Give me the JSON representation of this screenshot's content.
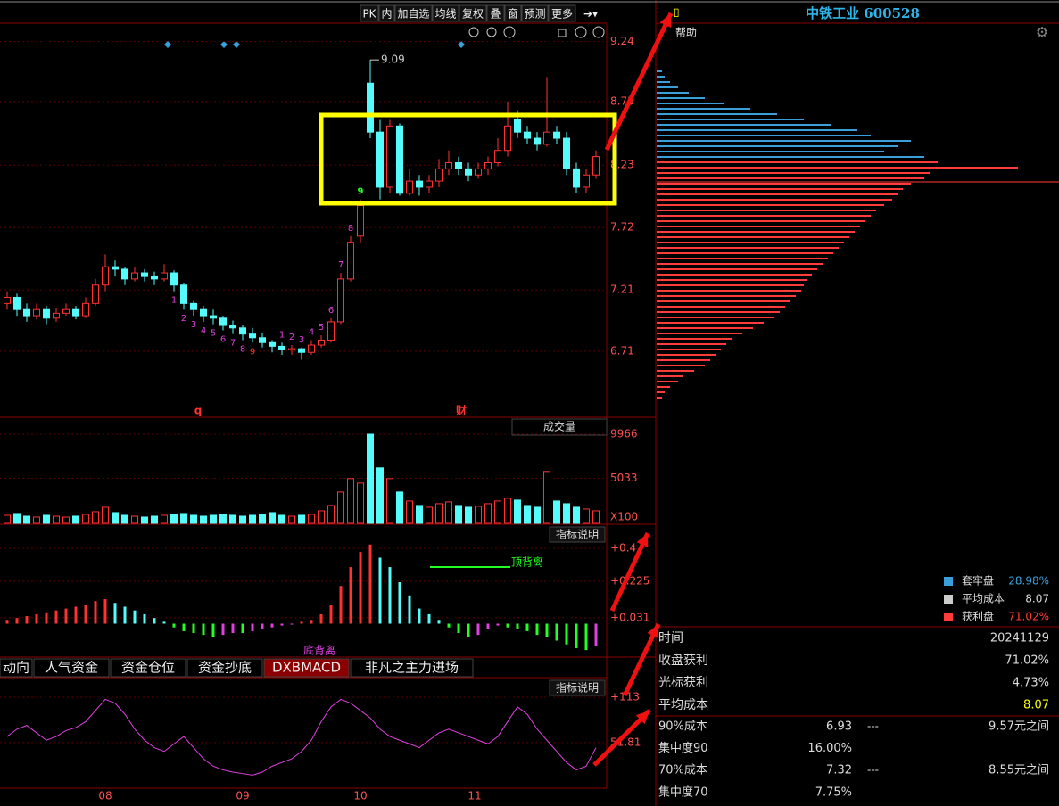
{
  "toolbar": {
    "buttons": [
      "PK",
      "内",
      "加自选",
      "均线",
      "复权",
      "叠",
      "窗",
      "预测",
      "更多"
    ]
  },
  "stock_title": "中铁工业 600528",
  "help": "帮助",
  "price_panel": {
    "ylim": [
      6.17,
      9.39
    ],
    "yticks": [
      9.24,
      8.75,
      8.23,
      7.72,
      7.21,
      6.71
    ],
    "candles": [
      [
        7.1,
        7.2,
        7.05,
        7.15
      ],
      [
        7.15,
        7.18,
        7.0,
        7.05
      ],
      [
        7.05,
        7.1,
        6.95,
        7.0
      ],
      [
        7.0,
        7.1,
        6.97,
        7.05
      ],
      [
        7.05,
        7.08,
        6.93,
        6.98
      ],
      [
        6.98,
        7.06,
        6.95,
        7.02
      ],
      [
        7.02,
        7.1,
        7.0,
        7.05
      ],
      [
        7.05,
        7.08,
        6.97,
        7.0
      ],
      [
        7.0,
        7.15,
        6.98,
        7.1
      ],
      [
        7.1,
        7.3,
        7.08,
        7.25
      ],
      [
        7.25,
        7.5,
        7.2,
        7.4
      ],
      [
        7.4,
        7.45,
        7.32,
        7.38
      ],
      [
        7.38,
        7.4,
        7.25,
        7.3
      ],
      [
        7.3,
        7.4,
        7.28,
        7.35
      ],
      [
        7.35,
        7.38,
        7.28,
        7.32
      ],
      [
        7.32,
        7.36,
        7.25,
        7.3
      ],
      [
        7.3,
        7.42,
        7.28,
        7.35
      ],
      [
        7.35,
        7.37,
        7.2,
        7.25
      ],
      [
        7.25,
        7.27,
        7.05,
        7.1
      ],
      [
        7.1,
        7.12,
        7.0,
        7.05
      ],
      [
        7.05,
        7.08,
        6.95,
        7.0
      ],
      [
        7.0,
        7.05,
        6.93,
        6.98
      ],
      [
        6.98,
        7.0,
        6.88,
        6.92
      ],
      [
        6.92,
        6.96,
        6.85,
        6.9
      ],
      [
        6.9,
        6.92,
        6.8,
        6.85
      ],
      [
        6.85,
        6.9,
        6.78,
        6.82
      ],
      [
        6.82,
        6.86,
        6.74,
        6.78
      ],
      [
        6.78,
        6.8,
        6.7,
        6.75
      ],
      [
        6.75,
        6.78,
        6.68,
        6.72
      ],
      [
        6.72,
        6.76,
        6.68,
        6.73
      ],
      [
        6.73,
        6.74,
        6.64,
        6.7
      ],
      [
        6.7,
        6.8,
        6.68,
        6.76
      ],
      [
        6.76,
        6.84,
        6.74,
        6.8
      ],
      [
        6.8,
        6.98,
        6.78,
        6.95
      ],
      [
        6.95,
        7.35,
        6.93,
        7.3
      ],
      [
        7.3,
        7.65,
        7.28,
        7.6
      ],
      [
        7.65,
        7.95,
        7.6,
        7.9
      ],
      [
        8.9,
        9.09,
        8.45,
        8.5
      ],
      [
        8.5,
        8.6,
        7.95,
        8.05
      ],
      [
        8.05,
        8.6,
        8.0,
        8.55
      ],
      [
        8.55,
        8.57,
        7.98,
        8.0
      ],
      [
        8.0,
        8.2,
        7.98,
        8.1
      ],
      [
        8.1,
        8.15,
        7.98,
        8.05
      ],
      [
        8.05,
        8.15,
        8.0,
        8.1
      ],
      [
        8.1,
        8.28,
        8.05,
        8.2
      ],
      [
        8.2,
        8.35,
        8.15,
        8.25
      ],
      [
        8.25,
        8.3,
        8.15,
        8.2
      ],
      [
        8.2,
        8.25,
        8.1,
        8.15
      ],
      [
        8.15,
        8.25,
        8.12,
        8.2
      ],
      [
        8.2,
        8.3,
        8.15,
        8.25
      ],
      [
        8.25,
        8.45,
        8.22,
        8.35
      ],
      [
        8.35,
        8.75,
        8.3,
        8.55
      ],
      [
        8.6,
        8.68,
        8.45,
        8.5
      ],
      [
        8.5,
        8.55,
        8.4,
        8.45
      ],
      [
        8.45,
        8.5,
        8.35,
        8.4
      ],
      [
        8.4,
        8.95,
        8.38,
        8.5
      ],
      [
        8.5,
        8.55,
        8.4,
        8.45
      ],
      [
        8.45,
        8.5,
        8.15,
        8.2
      ],
      [
        8.2,
        8.25,
        8.0,
        8.05
      ],
      [
        8.05,
        8.2,
        8.0,
        8.15
      ],
      [
        8.15,
        8.35,
        8.12,
        8.3
      ]
    ],
    "high_label": 9.09,
    "td_down": [
      "1",
      "2",
      "3",
      "4",
      "5",
      "6",
      "7",
      "8",
      "9"
    ],
    "td_up": [
      "1",
      "2",
      "3",
      "4",
      "5",
      "6",
      "7",
      "8",
      "9"
    ],
    "event_markers": [
      "q",
      "财"
    ]
  },
  "volume_panel": {
    "title": "成交量",
    "ylim": [
      0,
      11660
    ],
    "yticks": [
      9966,
      5033
    ],
    "unit_label": "X100",
    "values": [
      900,
      1100,
      800,
      700,
      900,
      800,
      700,
      800,
      1000,
      1300,
      1800,
      1200,
      900,
      800,
      700,
      800,
      900,
      1000,
      1100,
      900,
      800,
      900,
      1000,
      900,
      800,
      900,
      1000,
      1200,
      900,
      800,
      900,
      1000,
      1400,
      2000,
      3500,
      5000,
      4500,
      9966,
      6200,
      5000,
      3500,
      2500,
      2000,
      1800,
      2200,
      2400,
      2000,
      1800,
      1900,
      2200,
      2500,
      2800,
      2600,
      2000,
      1800,
      5800,
      2500,
      2200,
      1800,
      1600,
      1400
    ]
  },
  "macd_panel": {
    "button": "指标说明",
    "ylim": [
      -0.168,
      0.518
    ],
    "yticks": [
      {
        "value": 0.4,
        "label": "+0.4"
      },
      {
        "value": 0.225,
        "label": "+0.225"
      },
      {
        "value": 0.031,
        "label": "+0.031"
      }
    ],
    "values": [
      0.02,
      0.03,
      0.04,
      0.05,
      0.06,
      0.07,
      0.08,
      0.09,
      0.1,
      0.12,
      0.13,
      0.11,
      0.09,
      0.07,
      0.05,
      0.03,
      0.01,
      -0.02,
      -0.04,
      -0.05,
      -0.06,
      -0.07,
      -0.06,
      -0.05,
      -0.05,
      -0.04,
      -0.03,
      -0.02,
      -0.01,
      -0.005,
      0.01,
      0.02,
      0.05,
      0.1,
      0.2,
      0.3,
      0.38,
      0.42,
      0.35,
      0.3,
      0.22,
      0.15,
      0.08,
      0.05,
      0.02,
      -0.02,
      -0.05,
      -0.07,
      -0.06,
      -0.03,
      -0.01,
      -0.02,
      -0.03,
      -0.04,
      -0.06,
      -0.07,
      -0.09,
      -0.11,
      -0.13,
      -0.14,
      -0.12
    ],
    "top_divergence": "顶背离",
    "bottom_divergence": "底背离"
  },
  "tabs": [
    "动向",
    "人气资金",
    "资金仓位",
    "资金抄底",
    "DXBMACD",
    "非凡之主力进场"
  ],
  "kdj_panel": {
    "button": "指标说明",
    "ylim": [
      -9.6,
      137
    ],
    "yticks": [
      {
        "value": 113,
        "label": "+113"
      },
      51.81
    ],
    "values": [
      60,
      70,
      75,
      65,
      55,
      60,
      68,
      72,
      80,
      95,
      110,
      105,
      90,
      70,
      55,
      45,
      40,
      50,
      60,
      45,
      30,
      20,
      15,
      12,
      10,
      8,
      12,
      20,
      25,
      30,
      40,
      55,
      80,
      100,
      110,
      105,
      95,
      85,
      70,
      60,
      55,
      50,
      45,
      55,
      65,
      70,
      65,
      60,
      55,
      50,
      60,
      80,
      100,
      90,
      70,
      55,
      40,
      25,
      15,
      20,
      45
    ]
  },
  "x_labels": [
    "08",
    "09",
    "10",
    "11"
  ],
  "chips": {
    "series": [
      {
        "name": "套牢盘",
        "color": "#3a9fd8",
        "share": "28.98%",
        "values": [
          2,
          3,
          5,
          8,
          12,
          18,
          25,
          35,
          45,
          55,
          65,
          75,
          80,
          95,
          90,
          85,
          100
        ]
      },
      {
        "name": "获利盘",
        "color": "#ff3c3c",
        "share": "71.02%",
        "values": [
          105,
          135,
          102,
          100,
          95,
          92,
          90,
          88,
          85,
          82,
          80,
          78,
          76,
          74,
          72,
          70,
          68,
          66,
          64,
          62,
          60,
          58,
          56,
          55,
          54,
          52,
          50,
          48,
          46,
          44,
          40,
          36,
          32,
          28,
          26,
          24,
          22,
          20,
          18,
          14,
          10,
          8,
          5,
          3,
          2
        ]
      }
    ],
    "avg_cost": {
      "name": "平均成本",
      "value": "8.07"
    }
  },
  "info": {
    "rows": [
      [
        "时间",
        "20241129"
      ],
      [
        "收盘获利",
        "71.02%"
      ],
      [
        "光标获利",
        "4.73%"
      ],
      [
        "平均成本",
        "8.07"
      ]
    ],
    "cost_rows": [
      [
        "90%成本",
        "6.93",
        "---",
        "9.57元之间"
      ],
      [
        "集中度90",
        "16.00%"
      ],
      [
        "70%成本",
        "7.32",
        "---",
        "8.55元之间"
      ],
      [
        "集中度70",
        "7.75%"
      ]
    ]
  }
}
